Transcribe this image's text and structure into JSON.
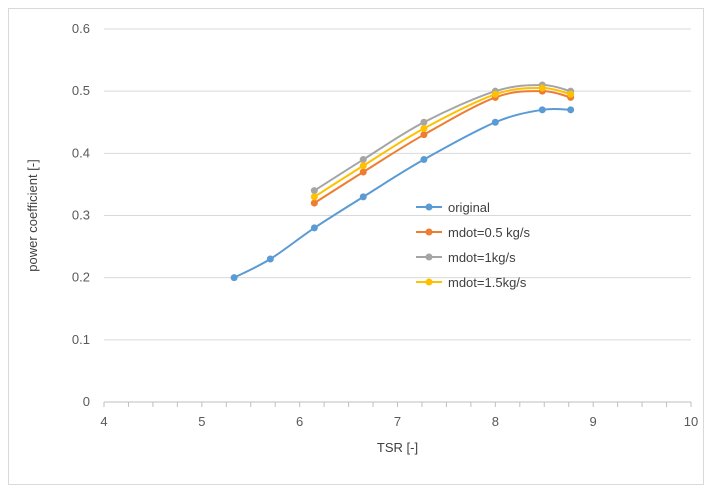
{
  "chart_data": {
    "type": "line",
    "title": "",
    "xlabel": "TSR [-]",
    "ylabel": "power coefficient [-]",
    "xlim": [
      4,
      10
    ],
    "ylim": [
      0,
      0.6
    ],
    "x_ticks": [
      4,
      5,
      6,
      7,
      8,
      9,
      10
    ],
    "y_ticks": [
      0,
      0.1,
      0.2,
      0.3,
      0.4,
      0.5,
      0.6
    ],
    "x_tick_labels": [
      "4",
      "5",
      "6",
      "7",
      "8",
      "9",
      "10"
    ],
    "y_tick_labels": [
      "0",
      "0.1",
      "0.2",
      "0.3",
      "0.4",
      "0.5",
      "0.6"
    ],
    "grid": "horizontal",
    "smoothed": true,
    "legend_position": "right-center",
    "series": [
      {
        "name": "original",
        "color": "#5b9bd5",
        "x": [
          5.33,
          5.7,
          6.15,
          6.65,
          7.27,
          8.0,
          8.48,
          8.77
        ],
        "y": [
          0.2,
          0.23,
          0.28,
          0.33,
          0.39,
          0.45,
          0.47,
          0.47
        ]
      },
      {
        "name": "mdot=0.5 kg/s",
        "color": "#ed7d31",
        "x": [
          6.15,
          6.65,
          7.27,
          8.0,
          8.48,
          8.77
        ],
        "y": [
          0.32,
          0.37,
          0.43,
          0.49,
          0.5,
          0.49
        ]
      },
      {
        "name": "mdot=1kg/s",
        "color": "#a5a5a5",
        "x": [
          6.15,
          6.65,
          7.27,
          8.0,
          8.48,
          8.77
        ],
        "y": [
          0.34,
          0.39,
          0.45,
          0.5,
          0.51,
          0.5
        ]
      },
      {
        "name": "mdot=1.5kg/s",
        "color": "#ffc000",
        "x": [
          6.15,
          6.65,
          7.27,
          8.0,
          8.48,
          8.77
        ],
        "y": [
          0.33,
          0.38,
          0.44,
          0.495,
          0.505,
          0.495
        ]
      }
    ]
  }
}
